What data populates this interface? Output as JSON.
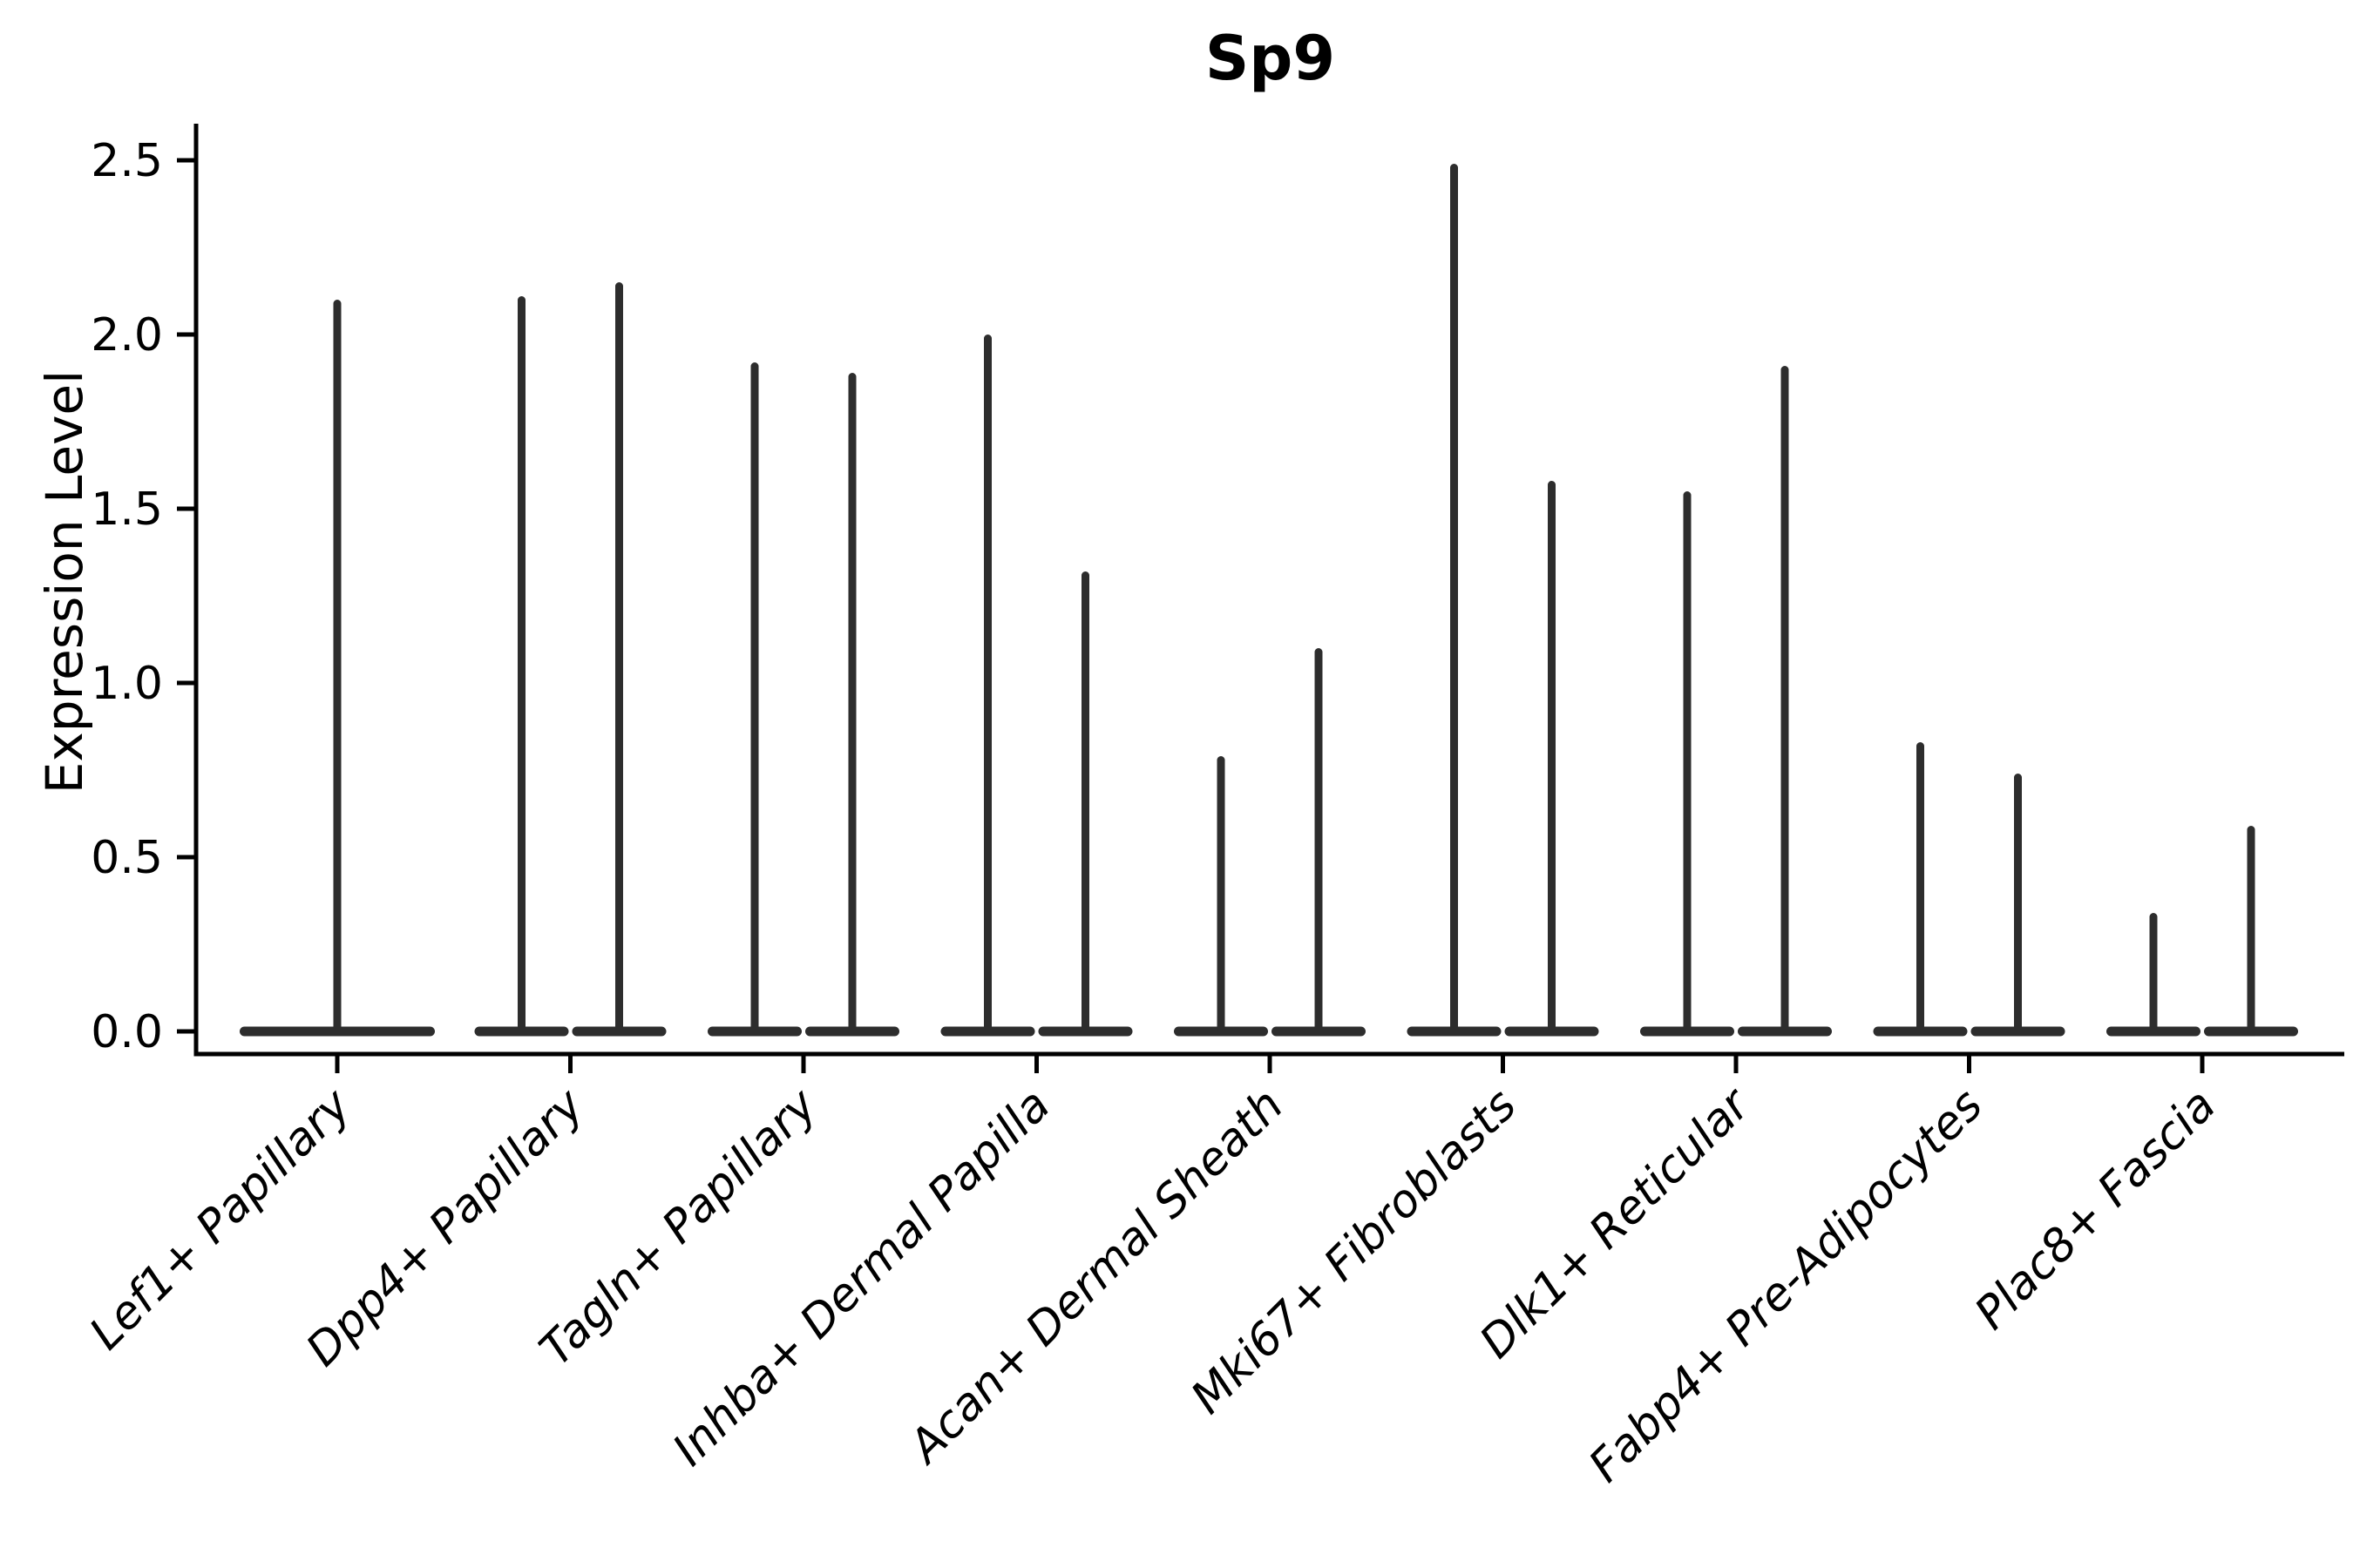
{
  "chart_data": {
    "type": "violin",
    "title": "Sp9",
    "ylabel": "Expression Level",
    "xlabel": "",
    "ylim": [
      0,
      2.61
    ],
    "yticks": [
      "0.0",
      "0.5",
      "1.0",
      "1.5",
      "2.0",
      "2.5"
    ],
    "grid": false,
    "legend": "none",
    "categories": [
      "Lef1+ Papillary",
      "Dpp4+ Papillary",
      "Tagln+ Papillary",
      "Inhba+ Dermal Papilla",
      "Acan+ Dermal Sheath",
      "Mki67+ Fibroblasts",
      "Dlk1+ Reticular",
      "Fabp4+ Pre-Adipocytes",
      "Plac8+ Fascia"
    ],
    "violin_max_per_category": [
      [
        2.1
      ],
      [
        2.11,
        2.15
      ],
      [
        1.92,
        1.89
      ],
      [
        2.0,
        1.32
      ],
      [
        0.79,
        1.1
      ],
      [
        2.49,
        1.58
      ],
      [
        1.55,
        1.91
      ],
      [
        0.83,
        0.74
      ],
      [
        0.34,
        0.59
      ]
    ],
    "shape_note": "each violin has nearly all mass at expression 0 (flat base line) with a thin vertical spike reaching the listed maximum",
    "colors": {
      "violin": "#2d2d2d",
      "axis": "#000000",
      "text": "#000000",
      "background": "#ffffff"
    }
  }
}
